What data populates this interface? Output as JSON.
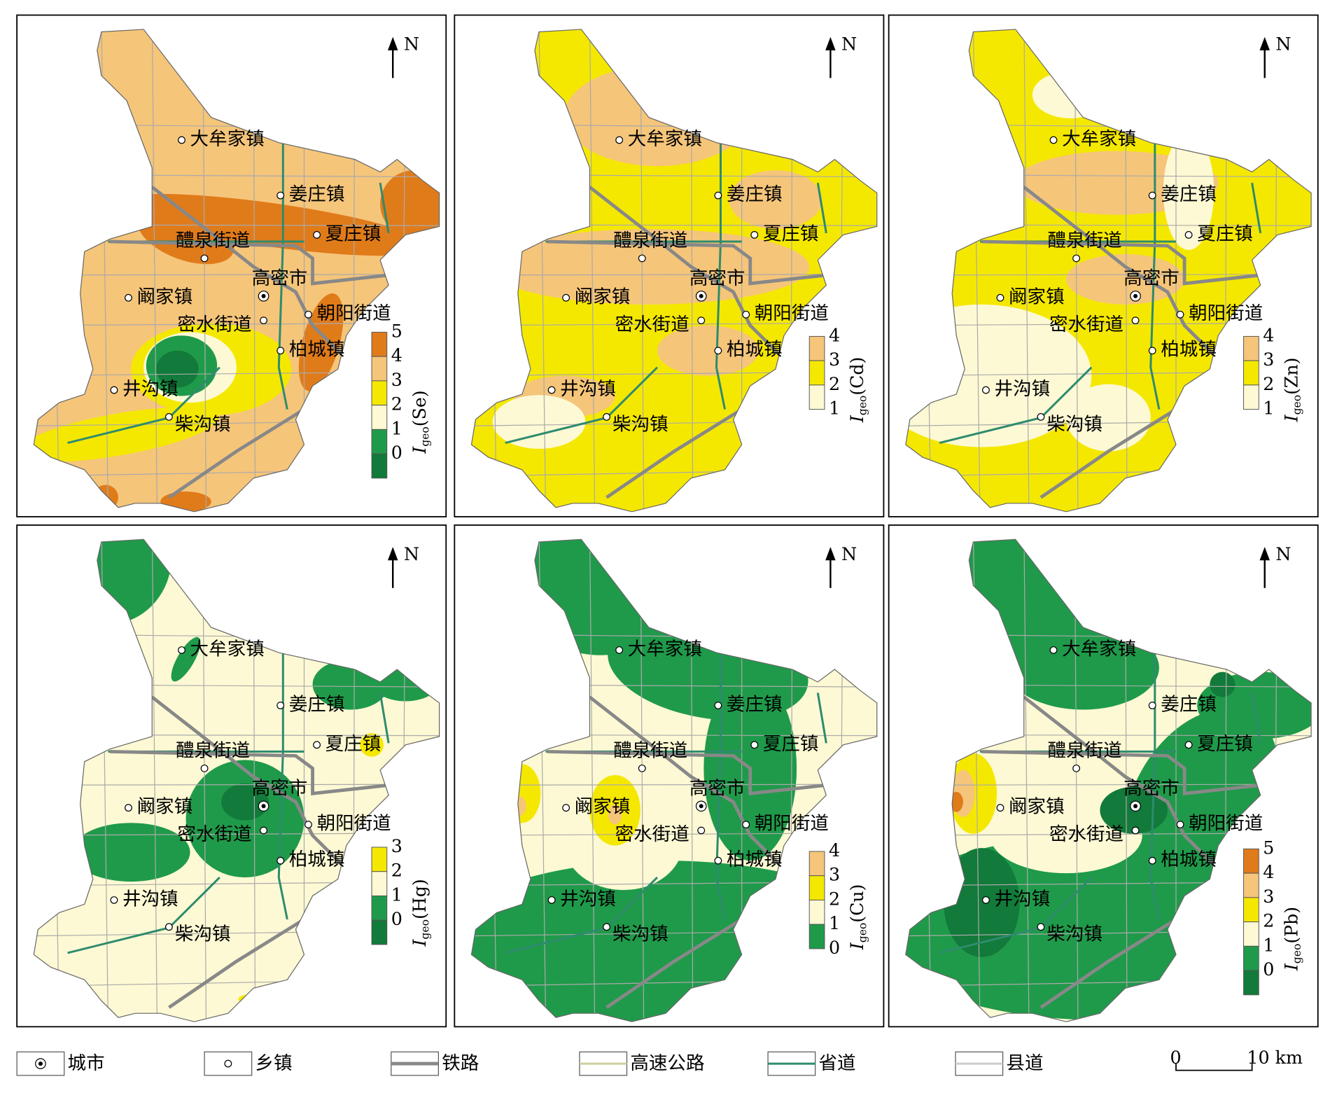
{
  "north": "N",
  "towns": [
    "大牟家镇",
    "姜庄镇",
    "夏庄镇",
    "醴泉街道",
    "高密市",
    "阚家镇",
    "密水街道",
    "朝阳街道",
    "柏城镇",
    "井沟镇",
    "柴沟镇"
  ],
  "panels": [
    {
      "legend": {
        "symbol": "I",
        "subscript": "geo",
        "element": "(Se)",
        "ticks": [
          5,
          4,
          3,
          2,
          1,
          0
        ],
        "colors": [
          "#e07b1a",
          "#f5c57a",
          "#f5e800",
          "#fdf9d4",
          "#1f9a4a",
          "#127a3a"
        ]
      }
    },
    {
      "legend": {
        "symbol": "I",
        "subscript": "geo",
        "element": "(Cd)",
        "ticks": [
          4,
          3,
          2,
          1
        ],
        "colors": [
          "#f5c57a",
          "#f5e800",
          "#fdf9d4"
        ]
      }
    },
    {
      "legend": {
        "symbol": "I",
        "subscript": "geo",
        "element": "(Zn)",
        "ticks": [
          4,
          3,
          2,
          1
        ],
        "colors": [
          "#f5c57a",
          "#f5e800",
          "#fdf9d4"
        ]
      }
    },
    {
      "legend": {
        "symbol": "I",
        "subscript": "geo",
        "element": "(Hg)",
        "ticks": [
          3,
          2,
          1,
          0
        ],
        "colors": [
          "#f5e800",
          "#fdf9d4",
          "#1f9a4a",
          "#127a3a"
        ]
      }
    },
    {
      "legend": {
        "symbol": "I",
        "subscript": "geo",
        "element": "(Cu)",
        "ticks": [
          4,
          3,
          2,
          1,
          0
        ],
        "colors": [
          "#f5c57a",
          "#f5e800",
          "#fdf9d4",
          "#1f9a4a"
        ]
      }
    },
    {
      "legend": {
        "symbol": "I",
        "subscript": "geo",
        "element": "(Pb)",
        "ticks": [
          5,
          4,
          3,
          2,
          1,
          0
        ],
        "colors": [
          "#e07b1a",
          "#f5c57a",
          "#f5e800",
          "#fdf9d4",
          "#1f9a4a",
          "#127a3a"
        ]
      }
    }
  ],
  "key": [
    "城市",
    "乡镇",
    "铁路",
    "高速公路",
    "省道",
    "县道"
  ],
  "scale": {
    "start": "0",
    "end": "10 km"
  }
}
